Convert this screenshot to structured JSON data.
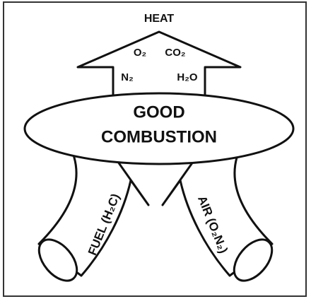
{
  "heat": "HEAT",
  "products": [
    "O₂",
    "CO₂",
    "N₂",
    "H₂O"
  ],
  "center": [
    "GOOD",
    "COMBUSTION"
  ],
  "fuel": "FUEL (H₂C)",
  "air": "AIR (O₂N₂)"
}
